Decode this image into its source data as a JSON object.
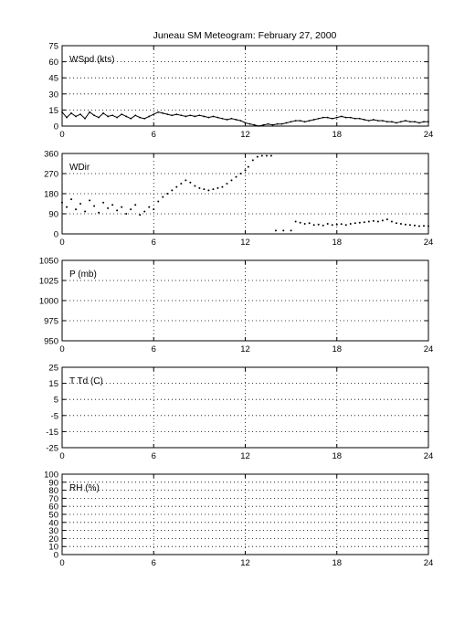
{
  "title": "Juneau SM Meteogram:  February 27, 2000",
  "chart_data": [
    {
      "type": "line",
      "id": "wspd",
      "label": "WSpd (kts)",
      "xlim": [
        0,
        24
      ],
      "xticks": [
        0,
        6,
        12,
        18,
        24
      ],
      "ylim": [
        0,
        75
      ],
      "yticks": [
        0,
        15,
        30,
        45,
        60,
        75
      ],
      "grid": true,
      "series": [
        {
          "x": [
            0.0,
            0.3,
            0.6,
            0.9,
            1.2,
            1.5,
            1.8,
            2.1,
            2.4,
            2.7,
            3.0,
            3.3,
            3.6,
            3.9,
            4.2,
            4.5,
            4.8,
            5.1,
            5.4,
            5.7,
            6.0,
            6.3,
            6.6,
            6.9,
            7.2,
            7.5,
            7.8,
            8.1,
            8.4,
            8.7,
            9.0,
            9.3,
            9.6,
            9.9,
            10.2,
            10.5,
            10.8,
            11.1,
            11.4,
            11.7,
            12.0,
            12.3,
            12.6,
            12.9,
            13.2,
            13.5,
            13.8,
            14.1,
            14.4,
            14.7,
            15.0,
            15.3,
            15.6,
            15.9,
            16.2,
            16.5,
            16.8,
            17.1,
            17.4,
            17.7,
            18.0,
            18.3,
            18.6,
            18.9,
            19.2,
            19.5,
            19.8,
            20.1,
            20.4,
            20.7,
            21.0,
            21.3,
            21.6,
            21.9,
            22.2,
            22.5,
            22.8,
            23.1,
            23.4,
            23.7,
            24.0
          ],
          "y": [
            13,
            8,
            12,
            9,
            11,
            7,
            13,
            10,
            8,
            12,
            9,
            10,
            8,
            11,
            9,
            7,
            10,
            8,
            7,
            9,
            11,
            13,
            12,
            11,
            10,
            11,
            10,
            9,
            10,
            9,
            10,
            9,
            8,
            9,
            8,
            7,
            6,
            7,
            6,
            5,
            3,
            2,
            1,
            0,
            1,
            2,
            1,
            2,
            2,
            3,
            4,
            5,
            5,
            4,
            5,
            6,
            7,
            8,
            8,
            7,
            8,
            9,
            8,
            8,
            7,
            7,
            6,
            5,
            6,
            5,
            5,
            4,
            4,
            3,
            4,
            5,
            4,
            4,
            3,
            4,
            4
          ]
        }
      ]
    },
    {
      "type": "scatter",
      "id": "wdir",
      "label": "WDir",
      "xlim": [
        0,
        24
      ],
      "xticks": [
        0,
        6,
        12,
        18,
        24
      ],
      "ylim": [
        0,
        360
      ],
      "yticks": [
        0,
        90,
        180,
        270,
        360
      ],
      "grid": true,
      "series": [
        {
          "x": [
            0.0,
            0.3,
            0.6,
            0.9,
            1.2,
            1.5,
            1.8,
            2.1,
            2.4,
            2.7,
            3.0,
            3.3,
            3.6,
            3.9,
            4.2,
            4.5,
            4.8,
            5.1,
            5.4,
            5.7,
            6.0,
            6.3,
            6.6,
            6.9,
            7.2,
            7.5,
            7.8,
            8.1,
            8.4,
            8.7,
            9.0,
            9.3,
            9.6,
            9.9,
            10.2,
            10.5,
            10.8,
            11.1,
            11.4,
            11.7,
            12.0,
            12.2,
            12.5,
            12.8,
            13.1,
            13.4,
            13.7,
            14.0,
            14.5,
            15.0,
            15.3,
            15.6,
            15.9,
            16.2,
            16.5,
            16.8,
            17.1,
            17.4,
            17.7,
            18.0,
            18.3,
            18.6,
            18.9,
            19.2,
            19.5,
            19.8,
            20.1,
            20.4,
            20.7,
            21.0,
            21.3,
            21.6,
            21.9,
            22.2,
            22.5,
            22.8,
            23.1,
            23.4,
            23.7,
            24.0
          ],
          "y": [
            140,
            120,
            155,
            110,
            135,
            100,
            150,
            125,
            95,
            140,
            115,
            130,
            105,
            120,
            90,
            110,
            130,
            85,
            100,
            120,
            110,
            145,
            165,
            180,
            195,
            210,
            225,
            240,
            230,
            215,
            205,
            200,
            195,
            200,
            205,
            210,
            225,
            240,
            255,
            270,
            285,
            300,
            330,
            345,
            350,
            350,
            350,
            15,
            15,
            15,
            55,
            50,
            45,
            48,
            40,
            42,
            38,
            45,
            40,
            42,
            44,
            40,
            45,
            48,
            50,
            52,
            55,
            58,
            55,
            60,
            65,
            55,
            48,
            45,
            42,
            40,
            38,
            35,
            36,
            35
          ]
        }
      ]
    },
    {
      "type": "line",
      "id": "pres",
      "label": "P (mb)",
      "xlim": [
        0,
        24
      ],
      "xticks": [
        0,
        6,
        12,
        18,
        24
      ],
      "ylim": [
        950,
        1050
      ],
      "yticks": [
        950,
        975,
        1000,
        1025,
        1050
      ],
      "grid": true,
      "series": []
    },
    {
      "type": "line",
      "id": "temp",
      "label": "T Td (C)",
      "xlim": [
        0,
        24
      ],
      "xticks": [
        0,
        6,
        12,
        18,
        24
      ],
      "ylim": [
        -25,
        25
      ],
      "yticks": [
        -25,
        -15,
        -5,
        5,
        15,
        25
      ],
      "grid": true,
      "series": []
    },
    {
      "type": "line",
      "id": "rh",
      "label": "RH (%)",
      "xlim": [
        0,
        24
      ],
      "xticks": [
        0,
        6,
        12,
        18,
        24
      ],
      "ylim": [
        0,
        100
      ],
      "yticks": [
        0,
        10,
        20,
        30,
        40,
        50,
        60,
        70,
        80,
        90,
        100
      ],
      "grid": true,
      "series": []
    }
  ]
}
